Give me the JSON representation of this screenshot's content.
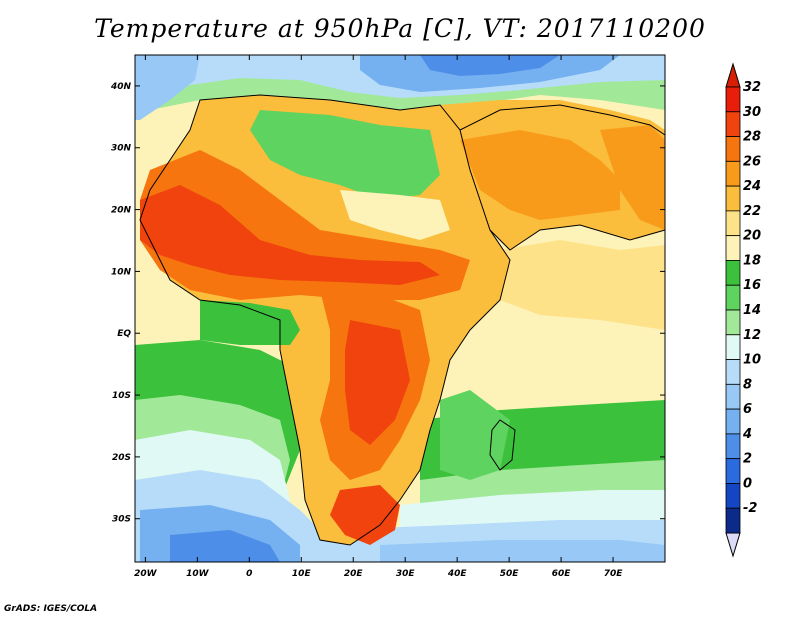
{
  "title": "Temperature at 950hPa [C], VT: 2017110200",
  "footer": "GrADS: IGES/COLA",
  "map": {
    "region": "africa-arabia",
    "lon_range": [
      -22,
      80
    ],
    "lat_range": [
      -37,
      45
    ],
    "lat_ticks": [
      {
        "value": 40,
        "label": "40N"
      },
      {
        "value": 30,
        "label": "30N"
      },
      {
        "value": 20,
        "label": "20N"
      },
      {
        "value": 10,
        "label": "10N"
      },
      {
        "value": 0,
        "label": "EQ"
      },
      {
        "value": -10,
        "label": "10S"
      },
      {
        "value": -20,
        "label": "20S"
      },
      {
        "value": -30,
        "label": "30S"
      }
    ],
    "lon_ticks": [
      {
        "value": -20,
        "label": "20W"
      },
      {
        "value": -10,
        "label": "10W"
      },
      {
        "value": 0,
        "label": "0"
      },
      {
        "value": 10,
        "label": "10E"
      },
      {
        "value": 20,
        "label": "20E"
      },
      {
        "value": 30,
        "label": "30E"
      },
      {
        "value": 40,
        "label": "40E"
      },
      {
        "value": 50,
        "label": "50E"
      },
      {
        "value": 60,
        "label": "60E"
      },
      {
        "value": 70,
        "label": "70E"
      }
    ]
  },
  "colorbar": {
    "levels": [
      "32",
      "30",
      "28",
      "26",
      "24",
      "22",
      "20",
      "18",
      "16",
      "14",
      "12",
      "10",
      "8",
      "6",
      "4",
      "2",
      "0",
      "-2"
    ],
    "colors": [
      "#e81e0a",
      "#f0430d",
      "#f6750f",
      "#f99b1a",
      "#fbbd3c",
      "#fde28a",
      "#fdf3b8",
      "#3cc13c",
      "#5fd35f",
      "#a1e899",
      "#e0f9f4",
      "#b6dcfa",
      "#97c8f6",
      "#75b0f0",
      "#4d8ee8",
      "#2b6be0",
      "#1446c4",
      "#0c2a8a"
    ],
    "top_color": "#d81e05",
    "bottom_color": "#dcdcf8"
  }
}
